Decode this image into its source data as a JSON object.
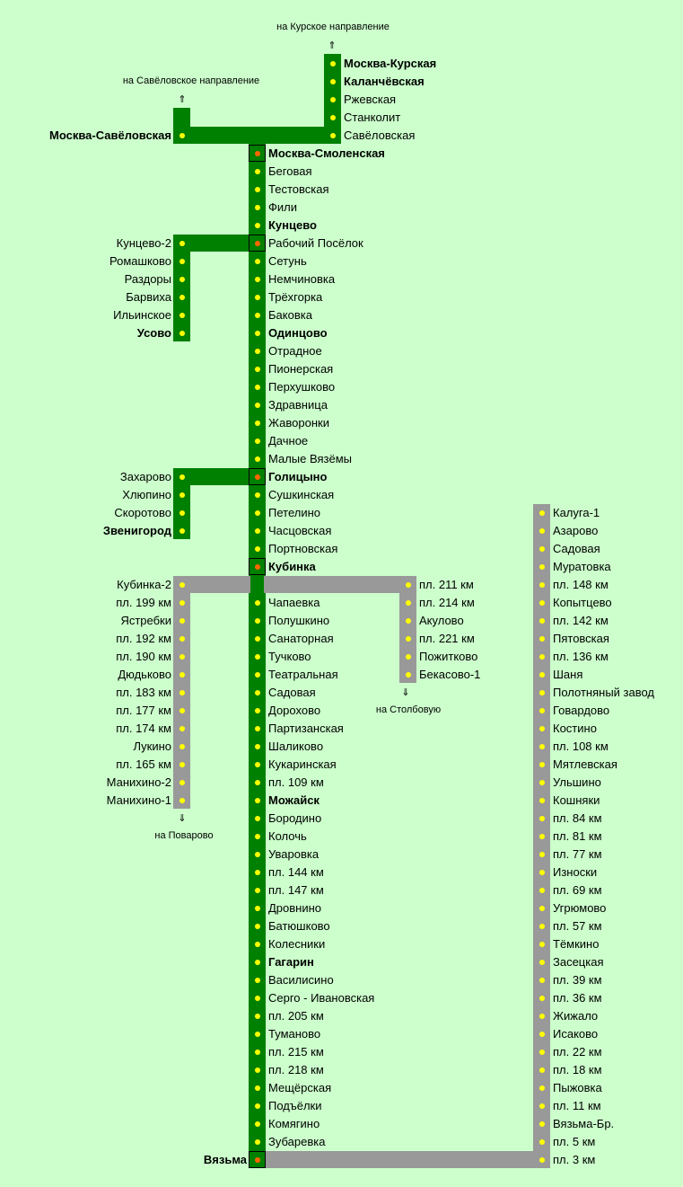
{
  "colors": {
    "background": "#ccffcc",
    "active_line": "#008000",
    "inactive_line": "#999999",
    "stop_dot": "#ffff00",
    "junction_dot": "#ff6600"
  },
  "directions": {
    "kursk": {
      "text": "на Курское направление",
      "arrow": "⇑",
      "arrow_icon": "double-arrow-up-icon"
    },
    "savelovo": {
      "text": "на Савёловское направление",
      "arrow": "⇑",
      "arrow_icon": "double-arrow-up-icon"
    },
    "stolbovaya": {
      "text": "на Столбовую",
      "arrow": "⇓",
      "arrow_icon": "double-arrow-down-icon"
    },
    "povarovo": {
      "text": "на Поварово",
      "arrow": "⇓",
      "arrow_icon": "double-arrow-down-icon"
    }
  },
  "branches": {
    "kursk": [
      {
        "name": "Москва-Курская",
        "bold": true
      },
      {
        "name": "Каланчёвская",
        "bold": true
      },
      {
        "name": "Ржевская",
        "bold": false
      },
      {
        "name": "Станколит",
        "bold": false
      },
      {
        "name": "Савёловская",
        "bold": false
      }
    ],
    "savelovo": [
      {
        "name": "Москва-Савёловская",
        "bold": true
      }
    ],
    "main": [
      {
        "name": "Москва-Смоленская",
        "bold": true,
        "junction": true
      },
      {
        "name": "Беговая",
        "bold": false
      },
      {
        "name": "Тестовская",
        "bold": false
      },
      {
        "name": "Фили",
        "bold": false
      },
      {
        "name": "Кунцево",
        "bold": true
      },
      {
        "name": "Рабочий Посёлок",
        "bold": false,
        "junction": true
      },
      {
        "name": "Сетунь",
        "bold": false
      },
      {
        "name": "Немчиновка",
        "bold": false
      },
      {
        "name": "Трёхгорка",
        "bold": false
      },
      {
        "name": "Баковка",
        "bold": false
      },
      {
        "name": "Одинцово",
        "bold": true
      },
      {
        "name": "Отрадное",
        "bold": false
      },
      {
        "name": "Пионерская",
        "bold": false
      },
      {
        "name": "Перхушково",
        "bold": false
      },
      {
        "name": "Здравница",
        "bold": false
      },
      {
        "name": "Жаворонки",
        "bold": false
      },
      {
        "name": "Дачное",
        "bold": false
      },
      {
        "name": "Малые Вязёмы",
        "bold": false
      },
      {
        "name": "Голицыно",
        "bold": true,
        "junction": true
      },
      {
        "name": "Сушкинская",
        "bold": false
      },
      {
        "name": "Петелино",
        "bold": false
      },
      {
        "name": "Часцовская",
        "bold": false
      },
      {
        "name": "Портновская",
        "bold": false
      },
      {
        "name": "Кубинка",
        "bold": true,
        "junction": true
      },
      {
        "name": "",
        "bold": false,
        "hidden": true
      },
      {
        "name": "Чапаевка",
        "bold": false
      },
      {
        "name": "Полушкино",
        "bold": false
      },
      {
        "name": "Санаторная",
        "bold": false
      },
      {
        "name": "Тучково",
        "bold": false
      },
      {
        "name": "Театральная",
        "bold": false
      },
      {
        "name": "Садовая",
        "bold": false
      },
      {
        "name": "Дорохово",
        "bold": false
      },
      {
        "name": "Партизанская",
        "bold": false
      },
      {
        "name": "Шаликово",
        "bold": false
      },
      {
        "name": "Кукаринская",
        "bold": false
      },
      {
        "name": "пл. 109 км",
        "bold": false
      },
      {
        "name": "Можайск",
        "bold": true
      },
      {
        "name": "Бородино",
        "bold": false
      },
      {
        "name": "Колочь",
        "bold": false
      },
      {
        "name": "Уваровка",
        "bold": false
      },
      {
        "name": "пл. 144 км",
        "bold": false
      },
      {
        "name": "пл. 147 км",
        "bold": false
      },
      {
        "name": "Дровнино",
        "bold": false
      },
      {
        "name": "Батюшково",
        "bold": false
      },
      {
        "name": "Колесники",
        "bold": false
      },
      {
        "name": "Гагарин",
        "bold": true
      },
      {
        "name": "Василисино",
        "bold": false
      },
      {
        "name": "Серго - Ивановская",
        "bold": false
      },
      {
        "name": "пл. 205 км",
        "bold": false
      },
      {
        "name": "Туманово",
        "bold": false
      },
      {
        "name": "пл. 215 км",
        "bold": false
      },
      {
        "name": "пл. 218 км",
        "bold": false
      },
      {
        "name": "Мещёрская",
        "bold": false
      },
      {
        "name": "Подъёлки",
        "bold": false
      },
      {
        "name": "Комягино",
        "bold": false
      },
      {
        "name": "Зубаревка",
        "bold": false
      },
      {
        "name": "Вязьма",
        "bold": true,
        "junction": true,
        "left": true
      }
    ],
    "usovo": [
      {
        "name": "Кунцево-2",
        "bold": false
      },
      {
        "name": "Ромашково",
        "bold": false
      },
      {
        "name": "Раздоры",
        "bold": false
      },
      {
        "name": "Барвиха",
        "bold": false
      },
      {
        "name": "Ильинское",
        "bold": false
      },
      {
        "name": "Усово",
        "bold": true
      }
    ],
    "zvenigorod": [
      {
        "name": "Захарово",
        "bold": false
      },
      {
        "name": "Хлюпино",
        "bold": false
      },
      {
        "name": "Скоротово",
        "bold": false
      },
      {
        "name": "Звенигород",
        "bold": true
      }
    ],
    "povarovo": [
      {
        "name": "Кубинка-2",
        "bold": false
      },
      {
        "name": "пл. 199 км",
        "bold": false
      },
      {
        "name": "Ястребки",
        "bold": false
      },
      {
        "name": "пл. 192 км",
        "bold": false
      },
      {
        "name": "пл. 190 км",
        "bold": false
      },
      {
        "name": "Дюдьково",
        "bold": false
      },
      {
        "name": "пл. 183 км",
        "bold": false
      },
      {
        "name": "пл. 177 км",
        "bold": false
      },
      {
        "name": "пл. 174 км",
        "bold": false
      },
      {
        "name": "Лукино",
        "bold": false
      },
      {
        "name": "пл. 165 км",
        "bold": false
      },
      {
        "name": "Манихино-2",
        "bold": false
      },
      {
        "name": "Манихино-1",
        "bold": false
      }
    ],
    "stolbovaya": [
      {
        "name": "пл. 211 км",
        "bold": false
      },
      {
        "name": "пл. 214 км",
        "bold": false
      },
      {
        "name": "Акулово",
        "bold": false
      },
      {
        "name": "пл. 221 км",
        "bold": false
      },
      {
        "name": "Пожитково",
        "bold": false
      },
      {
        "name": "Бекасово-1",
        "bold": false
      }
    ],
    "kaluga": [
      {
        "name": "Калуга-1",
        "bold": false
      },
      {
        "name": "Азарово",
        "bold": false
      },
      {
        "name": "Садовая",
        "bold": false
      },
      {
        "name": "Муратовка",
        "bold": false
      },
      {
        "name": "пл. 148 км",
        "bold": false
      },
      {
        "name": "Копытцево",
        "bold": false
      },
      {
        "name": "пл. 142 км",
        "bold": false
      },
      {
        "name": "Пятовская",
        "bold": false
      },
      {
        "name": "пл. 136 км",
        "bold": false
      },
      {
        "name": "Шаня",
        "bold": false
      },
      {
        "name": "Полотняный завод",
        "bold": false
      },
      {
        "name": "Говардово",
        "bold": false
      },
      {
        "name": "Костино",
        "bold": false
      },
      {
        "name": "пл. 108 км",
        "bold": false
      },
      {
        "name": "Мятлевская",
        "bold": false
      },
      {
        "name": "Ульшино",
        "bold": false
      },
      {
        "name": "Кошняки",
        "bold": false
      },
      {
        "name": "пл. 84 км",
        "bold": false
      },
      {
        "name": "пл. 81 км",
        "bold": false
      },
      {
        "name": "пл. 77 км",
        "bold": false
      },
      {
        "name": "Износки",
        "bold": false
      },
      {
        "name": "пл. 69 км",
        "bold": false
      },
      {
        "name": "Угрюмово",
        "bold": false
      },
      {
        "name": "пл. 57 км",
        "bold": false
      },
      {
        "name": "Тёмкино",
        "bold": false
      },
      {
        "name": "Засецкая",
        "bold": false
      },
      {
        "name": "пл. 39 км",
        "bold": false
      },
      {
        "name": "пл. 36 км",
        "bold": false
      },
      {
        "name": "Жижало",
        "bold": false
      },
      {
        "name": "Исаково",
        "bold": false
      },
      {
        "name": "пл. 22 км",
        "bold": false
      },
      {
        "name": "пл. 18 км",
        "bold": false
      },
      {
        "name": "Пыжовка",
        "bold": false
      },
      {
        "name": "пл. 11 км",
        "bold": false
      },
      {
        "name": "Вязьма-Бр.",
        "bold": false
      },
      {
        "name": "пл. 5 км",
        "bold": false
      },
      {
        "name": "пл. 3 км",
        "bold": false
      }
    ]
  }
}
